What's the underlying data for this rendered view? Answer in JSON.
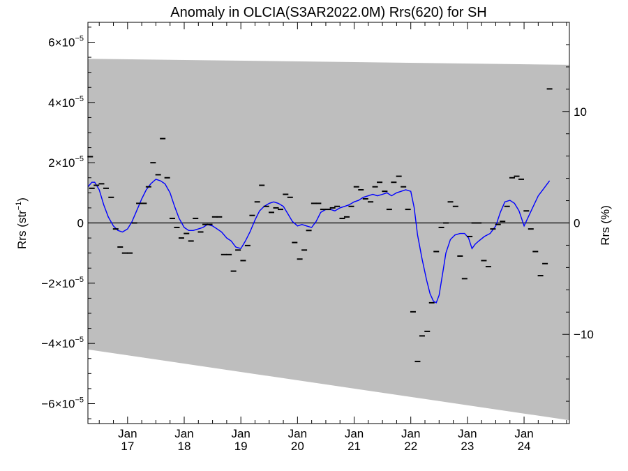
{
  "chart_data": {
    "type": "scatter",
    "title": "Anomaly in OLCIA(S3AR2022.0M) Rrs(620) for SH",
    "ylabel_left": "Rrs (str",
    "ylabel_left_sup": "−1",
    "ylabel_left_close": ")",
    "ylabel_right": "Rrs (%)",
    "x_axis": {
      "unit": "decimal year",
      "range": [
        2016.3,
        2024.8
      ],
      "ticks": [
        {
          "value": 2017,
          "month": "Jan",
          "year": "17"
        },
        {
          "value": 2018,
          "month": "Jan",
          "year": "18"
        },
        {
          "value": 2019,
          "month": "Jan",
          "year": "19"
        },
        {
          "value": 2020,
          "month": "Jan",
          "year": "20"
        },
        {
          "value": 2021,
          "month": "Jan",
          "year": "21"
        },
        {
          "value": 2022,
          "month": "Jan",
          "year": "22"
        },
        {
          "value": 2023,
          "month": "Jan",
          "year": "23"
        },
        {
          "value": 2024,
          "month": "Jan",
          "year": "24"
        }
      ]
    },
    "y_left": {
      "range": [
        -6.66e-05,
        6.66e-05
      ],
      "ticks": [
        {
          "value": 6e-05,
          "mant": "6×10",
          "exp": "−5"
        },
        {
          "value": 4e-05,
          "mant": "4×10",
          "exp": "−5"
        },
        {
          "value": 2e-05,
          "mant": "2×10",
          "exp": "−5"
        },
        {
          "value": 0,
          "mant": "0",
          "exp": ""
        },
        {
          "value": -2e-05,
          "mant": "−2×10",
          "exp": "−5"
        },
        {
          "value": -4e-05,
          "mant": "−4×10",
          "exp": "−5"
        },
        {
          "value": -6e-05,
          "mant": "−6×10",
          "exp": "−5"
        }
      ]
    },
    "y_right": {
      "range": [
        -18.0,
        18.0
      ],
      "ticks": [
        {
          "value": 10,
          "label": "10"
        },
        {
          "value": 0,
          "label": "0"
        },
        {
          "value": -10,
          "label": "−10"
        }
      ]
    },
    "band": {
      "color": "#bebebe",
      "upper": [
        [
          2016.3,
          5.45e-05
        ],
        [
          2024.8,
          5.25e-05
        ]
      ],
      "lower": [
        [
          2016.3,
          -4.2e-05
        ],
        [
          2024.8,
          -6.55e-05
        ]
      ]
    },
    "zero_line": true,
    "series": [
      {
        "kind": "monthly-anomaly-markers",
        "color": "#000000",
        "points": [
          [
            2016.34,
            2.2e-05
          ],
          [
            2016.37,
            1.15e-05
          ],
          [
            2016.45,
            1.25e-05
          ],
          [
            2016.54,
            1.3e-05
          ],
          [
            2016.62,
            1.15e-05
          ],
          [
            2016.71,
            8.5e-06
          ],
          [
            2016.79,
            -2e-06
          ],
          [
            2016.87,
            -8e-06
          ],
          [
            2016.95,
            -1e-05
          ],
          [
            2017.04,
            -1e-05
          ],
          [
            2017.12,
            0.0
          ],
          [
            2017.2,
            6.5e-06
          ],
          [
            2017.29,
            6.5e-06
          ],
          [
            2017.37,
            1.2e-05
          ],
          [
            2017.45,
            2e-05
          ],
          [
            2017.54,
            1.6e-05
          ],
          [
            2017.62,
            2.8e-05
          ],
          [
            2017.7,
            1.5e-05
          ],
          [
            2017.79,
            1.5e-06
          ],
          [
            2017.87,
            -1.5e-06
          ],
          [
            2017.95,
            -5e-06
          ],
          [
            2018.04,
            -3.5e-06
          ],
          [
            2018.12,
            -6e-06
          ],
          [
            2018.2,
            1.5e-06
          ],
          [
            2018.29,
            -3e-06
          ],
          [
            2018.37,
            -5e-07
          ],
          [
            2018.45,
            -5e-07
          ],
          [
            2018.54,
            2e-06
          ],
          [
            2018.62,
            2e-06
          ],
          [
            2018.7,
            -1.05e-05
          ],
          [
            2018.79,
            -1.05e-05
          ],
          [
            2018.87,
            -1.6e-05
          ],
          [
            2018.95,
            -9e-06
          ],
          [
            2019.04,
            -1.25e-05
          ],
          [
            2019.12,
            -7.5e-06
          ],
          [
            2019.2,
            2.5e-06
          ],
          [
            2019.29,
            7e-06
          ],
          [
            2019.37,
            1.25e-05
          ],
          [
            2019.45,
            5.5e-06
          ],
          [
            2019.54,
            3.5e-06
          ],
          [
            2019.62,
            5e-06
          ],
          [
            2019.7,
            4.5e-06
          ],
          [
            2019.79,
            9.5e-06
          ],
          [
            2019.87,
            8.5e-06
          ],
          [
            2019.95,
            -6.5e-06
          ],
          [
            2020.04,
            -1.2e-05
          ],
          [
            2020.12,
            -9e-06
          ],
          [
            2020.2,
            -2.5e-06
          ],
          [
            2020.29,
            6.5e-06
          ],
          [
            2020.37,
            6.5e-06
          ],
          [
            2020.45,
            4.5e-06
          ],
          [
            2020.54,
            4.5e-06
          ],
          [
            2020.62,
            5e-06
          ],
          [
            2020.7,
            5.5e-06
          ],
          [
            2020.79,
            1.5e-06
          ],
          [
            2020.87,
            2e-06
          ],
          [
            2020.95,
            5.5e-06
          ],
          [
            2021.04,
            1.2e-05
          ],
          [
            2021.12,
            1.1e-05
          ],
          [
            2021.2,
            8e-06
          ],
          [
            2021.29,
            7e-06
          ],
          [
            2021.37,
            1.2e-05
          ],
          [
            2021.45,
            1.35e-05
          ],
          [
            2021.54,
            1.05e-05
          ],
          [
            2021.62,
            4.5e-06
          ],
          [
            2021.7,
            1.35e-05
          ],
          [
            2021.79,
            1.55e-05
          ],
          [
            2021.87,
            1.2e-05
          ],
          [
            2021.95,
            4.5e-06
          ],
          [
            2022.04,
            -2.95e-05
          ],
          [
            2022.12,
            -4.6e-05
          ],
          [
            2022.2,
            -3.75e-05
          ],
          [
            2022.29,
            -3.6e-05
          ],
          [
            2022.37,
            -2.65e-05
          ],
          [
            2022.45,
            -9.5e-06
          ],
          [
            2022.54,
            -1.5e-06
          ],
          [
            2022.62,
            0.0
          ],
          [
            2022.7,
            7e-06
          ],
          [
            2022.79,
            5.5e-06
          ],
          [
            2022.87,
            -1.1e-05
          ],
          [
            2022.95,
            -1.85e-05
          ],
          [
            2023.04,
            -4.5e-06
          ],
          [
            2023.12,
            0.0
          ],
          [
            2023.2,
            0.0
          ],
          [
            2023.29,
            -1.25e-05
          ],
          [
            2023.37,
            -1.45e-05
          ],
          [
            2023.45,
            -2e-06
          ],
          [
            2023.54,
            -5e-07
          ],
          [
            2023.62,
            5e-07
          ],
          [
            2023.7,
            5.5e-06
          ],
          [
            2023.79,
            1.5e-05
          ],
          [
            2023.87,
            1.55e-05
          ],
          [
            2023.95,
            1.45e-05
          ],
          [
            2024.04,
            4e-06
          ],
          [
            2024.12,
            -2e-06
          ],
          [
            2024.2,
            -9.5e-06
          ],
          [
            2024.29,
            -1.75e-05
          ],
          [
            2024.37,
            -1.35e-05
          ],
          [
            2024.45,
            4.45e-05
          ]
        ]
      },
      {
        "kind": "smoothed-line",
        "color": "#0000ff",
        "points": [
          [
            2016.3,
            1.2e-05
          ],
          [
            2016.37,
            1.35e-05
          ],
          [
            2016.42,
            1.35e-05
          ],
          [
            2016.5,
            1.1e-05
          ],
          [
            2016.58,
            6e-06
          ],
          [
            2016.66,
            2e-06
          ],
          [
            2016.75,
            -1e-06
          ],
          [
            2016.83,
            -2.5e-06
          ],
          [
            2016.91,
            -3e-06
          ],
          [
            2017.0,
            -2e-06
          ],
          [
            2017.08,
            5e-07
          ],
          [
            2017.16,
            4e-06
          ],
          [
            2017.25,
            8e-06
          ],
          [
            2017.33,
            1.1e-05
          ],
          [
            2017.41,
            1.3e-05
          ],
          [
            2017.5,
            1.45e-05
          ],
          [
            2017.58,
            1.4e-05
          ],
          [
            2017.66,
            1.3e-05
          ],
          [
            2017.75,
            1e-05
          ],
          [
            2017.83,
            5.5e-06
          ],
          [
            2017.91,
            1.5e-06
          ],
          [
            2018.0,
            -1.5e-06
          ],
          [
            2018.08,
            -2.5e-06
          ],
          [
            2018.16,
            -2.5e-06
          ],
          [
            2018.25,
            -2e-06
          ],
          [
            2018.33,
            -1.5e-06
          ],
          [
            2018.41,
            -5e-07
          ],
          [
            2018.5,
            -1e-06
          ],
          [
            2018.58,
            -2e-06
          ],
          [
            2018.66,
            -3e-06
          ],
          [
            2018.75,
            -5e-06
          ],
          [
            2018.83,
            -6e-06
          ],
          [
            2018.91,
            -8e-06
          ],
          [
            2019.0,
            -8.5e-06
          ],
          [
            2019.08,
            -6e-06
          ],
          [
            2019.16,
            -3e-06
          ],
          [
            2019.25,
            1e-06
          ],
          [
            2019.33,
            4e-06
          ],
          [
            2019.41,
            5.5e-06
          ],
          [
            2019.5,
            6.5e-06
          ],
          [
            2019.58,
            7e-06
          ],
          [
            2019.66,
            6.5e-06
          ],
          [
            2019.75,
            5.5e-06
          ],
          [
            2019.83,
            3e-06
          ],
          [
            2019.91,
            5e-07
          ],
          [
            2020.0,
            -1e-06
          ],
          [
            2020.08,
            -5e-07
          ],
          [
            2020.16,
            -1e-06
          ],
          [
            2020.25,
            -1.5e-06
          ],
          [
            2020.33,
            5e-07
          ],
          [
            2020.41,
            3.5e-06
          ],
          [
            2020.5,
            4.5e-06
          ],
          [
            2020.58,
            4.5e-06
          ],
          [
            2020.66,
            4e-06
          ],
          [
            2020.75,
            5e-06
          ],
          [
            2020.83,
            5.5e-06
          ],
          [
            2020.91,
            6e-06
          ],
          [
            2021.0,
            7e-06
          ],
          [
            2021.08,
            7.5e-06
          ],
          [
            2021.16,
            8.5e-06
          ],
          [
            2021.25,
            9e-06
          ],
          [
            2021.33,
            9.5e-06
          ],
          [
            2021.41,
            9e-06
          ],
          [
            2021.5,
            9.5e-06
          ],
          [
            2021.58,
            1e-05
          ],
          [
            2021.66,
            9e-06
          ],
          [
            2021.75,
            1e-05
          ],
          [
            2021.83,
            1.05e-05
          ],
          [
            2021.91,
            1.1e-05
          ],
          [
            2022.0,
            1.05e-05
          ],
          [
            2022.06,
            5e-06
          ],
          [
            2022.12,
            -4e-06
          ],
          [
            2022.2,
            -1.2e-05
          ],
          [
            2022.28,
            -1.9e-05
          ],
          [
            2022.34,
            -2.35e-05
          ],
          [
            2022.4,
            -2.6e-05
          ],
          [
            2022.45,
            -2.65e-05
          ],
          [
            2022.5,
            -2.4e-05
          ],
          [
            2022.56,
            -1.7e-05
          ],
          [
            2022.62,
            -1e-05
          ],
          [
            2022.7,
            -5.5e-06
          ],
          [
            2022.78,
            -4e-06
          ],
          [
            2022.87,
            -3.5e-06
          ],
          [
            2022.95,
            -3.5e-06
          ],
          [
            2023.02,
            -5e-06
          ],
          [
            2023.08,
            -8.5e-06
          ],
          [
            2023.14,
            -7e-06
          ],
          [
            2023.2,
            -6e-06
          ],
          [
            2023.3,
            -4.5e-06
          ],
          [
            2023.4,
            -3.5e-06
          ],
          [
            2023.5,
            -1e-06
          ],
          [
            2023.58,
            3.5e-06
          ],
          [
            2023.66,
            7e-06
          ],
          [
            2023.75,
            7.5e-06
          ],
          [
            2023.83,
            6.5e-06
          ],
          [
            2023.91,
            4e-06
          ],
          [
            2024.0,
            -1e-06
          ],
          [
            2024.05,
            1e-06
          ],
          [
            2024.15,
            5e-06
          ],
          [
            2024.25,
            9e-06
          ],
          [
            2024.35,
            1.15e-05
          ],
          [
            2024.45,
            1.4e-05
          ]
        ]
      }
    ]
  }
}
